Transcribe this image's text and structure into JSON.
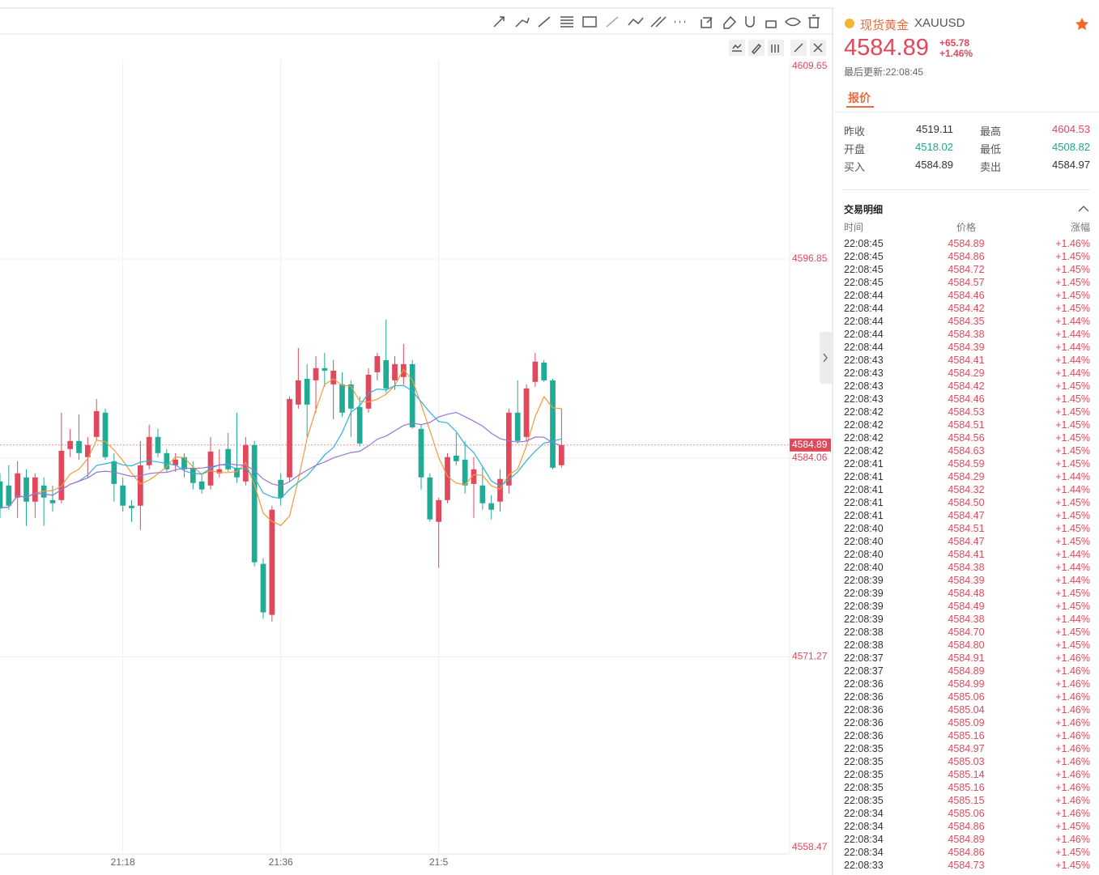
{
  "chart": {
    "type": "candlestick",
    "xlim": [
      0,
      90
    ],
    "xticks": [
      {
        "value": 14,
        "label": "21:18"
      },
      {
        "value": 32,
        "label": "21:36"
      },
      {
        "value": 50,
        "label": "21:5"
      }
    ],
    "ylim": [
      4558.6,
      4609.65
    ],
    "yticks": [
      4609.65,
      4596.85,
      4584.06,
      4571.27,
      4558.47
    ],
    "grid": true,
    "up_color": "#e0485c",
    "down_color": "#22ab94",
    "last_price": 4584.89,
    "open": [
      4582.55,
      4582.29,
      4581.51,
      4582.81,
      4581.25,
      4582.29,
      4581.35,
      4581.35,
      4584.63,
      4585.15,
      4584.11,
      4585.41,
      4586.97,
      4583.85,
      4582.29,
      4580.99,
      4580.99,
      4583.59,
      4585.41,
      4584.37,
      4583.59,
      4584.11,
      4583.43,
      4582.55,
      4582.29,
      4583.07,
      4584.63,
      4583.43,
      4582.55,
      4584.89,
      4577.25,
      4573.97,
      4582.65,
      4582.81,
      4587.49,
      4589.15,
      4589.05,
      4589.83,
      4588.79,
      4588.79,
      4588.79,
      4587.33,
      4587.23,
      4589.57,
      4590.35,
      4589.05,
      4589.26,
      4590.09,
      4585.93,
      4582.81,
      4579.95,
      4581.35,
      4584.21,
      4583.95,
      4582.39,
      4582.29,
      4581.15,
      4581.25,
      4582.29,
      4586.97,
      4585.41,
      4588.95,
      4590.19,
      4589.05,
      4583.59
    ],
    "high": [
      4583.07,
      4583.59,
      4583.85,
      4583.33,
      4583.07,
      4582.81,
      4582.29,
      4586.97,
      4585.93,
      4586.87,
      4585.41,
      4587.85,
      4587.23,
      4584.37,
      4582.81,
      4581.35,
      4585.15,
      4586.19,
      4585.93,
      4584.63,
      4584.37,
      4584.37,
      4583.85,
      4583.07,
      4585.41,
      4584.63,
      4585.67,
      4586.97,
      4585.41,
      4585.15,
      4577.61,
      4580.99,
      4583.07,
      4588.01,
      4591.13,
      4590.09,
      4590.61,
      4590.82,
      4590.35,
      4589.57,
      4589.05,
      4588.01,
      4589.83,
      4590.82,
      4592.95,
      4590.61,
      4591.39,
      4590.35,
      4586.19,
      4583.07,
      4581.51,
      4584.37,
      4585.67,
      4585.15,
      4584.11,
      4583.43,
      4581.67,
      4583.33,
      4587.23,
      4589.05,
      4588.79,
      4590.82,
      4590.35,
      4589.15,
      4587.23
    ],
    "low": [
      4580.21,
      4580.73,
      4580.21,
      4579.69,
      4580.21,
      4579.69,
      4580.61,
      4581.15,
      4584.11,
      4583.95,
      4582.81,
      4585.15,
      4583.95,
      4581.25,
      4580.61,
      4579.95,
      4579.43,
      4583.33,
      4584.11,
      4583.17,
      4583.17,
      4582.81,
      4582.03,
      4581.77,
      4582.03,
      4582.81,
      4583.17,
      4582.45,
      4582.29,
      4577.09,
      4573.71,
      4573.55,
      4580.99,
      4582.55,
      4587.23,
      4585.41,
      4586.97,
      4588.63,
      4586.55,
      4586.71,
      4585.41,
      4584.79,
      4586.97,
      4589.05,
      4588.27,
      4588.43,
      4588.79,
      4585.93,
      4582.03,
      4579.95,
      4576.99,
      4581.15,
      4583.59,
      4581.77,
      4580.21,
      4580.73,
      4580.11,
      4580.61,
      4581.77,
      4584.99,
      4585.15,
      4588.63,
      4588.95,
      4583.33,
      4583.43
    ],
    "close": [
      4580.83,
      4580.99,
      4583.07,
      4581.25,
      4582.81,
      4581.51,
      4581.15,
      4584.52,
      4585.15,
      4584.37,
      4584.89,
      4587.07,
      4584.11,
      4582.39,
      4580.99,
      4580.83,
      4583.59,
      4585.41,
      4584.37,
      4583.33,
      4583.95,
      4583.33,
      4582.45,
      4582.03,
      4584.47,
      4583.33,
      4583.33,
      4582.81,
      4584.89,
      4577.35,
      4574.13,
      4580.73,
      4581.51,
      4587.85,
      4589.05,
      4587.49,
      4589.83,
      4589.67,
      4589.67,
      4586.97,
      4587.23,
      4584.99,
      4589.41,
      4590.61,
      4588.53,
      4590.09,
      4590.09,
      4586.03,
      4582.81,
      4580.11,
      4581.35,
      4584.11,
      4583.85,
      4582.29,
      4583.33,
      4581.15,
      4580.73,
      4582.71,
      4586.97,
      4585.15,
      4588.53,
      4590.25,
      4589.05,
      4583.43,
      4584.89
    ],
    "indicators": [
      {
        "color": "#f39a3a"
      },
      {
        "color": "#2bb3d3"
      },
      {
        "color": "#9b74d8"
      }
    ]
  },
  "header": {
    "name": "现货黄金",
    "symbol": "XAUUSD",
    "price": "4584.89",
    "change": "+65.78",
    "change_pct": "+1.46%",
    "updated": "最后更新:22:08:45",
    "tab": "报价"
  },
  "quote": [
    {
      "label": "昨收",
      "value": "4519.11",
      "color": "#333333"
    },
    {
      "label": "最高",
      "value": "4604.53",
      "color": "#e0485c"
    },
    {
      "label": "开盘",
      "value": "4518.02",
      "color": "#1fa58e"
    },
    {
      "label": "最低",
      "value": "4508.82",
      "color": "#1fa58e"
    },
    {
      "label": "买入",
      "value": "4584.89",
      "color": "#333333"
    },
    {
      "label": "卖出",
      "value": "4584.97",
      "color": "#333333"
    }
  ],
  "trades": {
    "title": "交易明细",
    "columns": [
      "时间",
      "价格",
      "涨幅"
    ],
    "color": "#e0485c",
    "rows": [
      [
        "22:08:45",
        "4584.89",
        "+1.46%"
      ],
      [
        "22:08:45",
        "4584.86",
        "+1.45%"
      ],
      [
        "22:08:45",
        "4584.72",
        "+1.45%"
      ],
      [
        "22:08:45",
        "4584.57",
        "+1.45%"
      ],
      [
        "22:08:44",
        "4584.46",
        "+1.45%"
      ],
      [
        "22:08:44",
        "4584.42",
        "+1.45%"
      ],
      [
        "22:08:44",
        "4584.35",
        "+1.44%"
      ],
      [
        "22:08:44",
        "4584.38",
        "+1.44%"
      ],
      [
        "22:08:44",
        "4584.39",
        "+1.44%"
      ],
      [
        "22:08:43",
        "4584.41",
        "+1.44%"
      ],
      [
        "22:08:43",
        "4584.29",
        "+1.44%"
      ],
      [
        "22:08:43",
        "4584.42",
        "+1.45%"
      ],
      [
        "22:08:43",
        "4584.46",
        "+1.45%"
      ],
      [
        "22:08:42",
        "4584.53",
        "+1.45%"
      ],
      [
        "22:08:42",
        "4584.51",
        "+1.45%"
      ],
      [
        "22:08:42",
        "4584.56",
        "+1.45%"
      ],
      [
        "22:08:42",
        "4584.63",
        "+1.45%"
      ],
      [
        "22:08:41",
        "4584.59",
        "+1.45%"
      ],
      [
        "22:08:41",
        "4584.29",
        "+1.44%"
      ],
      [
        "22:08:41",
        "4584.32",
        "+1.44%"
      ],
      [
        "22:08:41",
        "4584.50",
        "+1.45%"
      ],
      [
        "22:08:41",
        "4584.47",
        "+1.45%"
      ],
      [
        "22:08:40",
        "4584.51",
        "+1.45%"
      ],
      [
        "22:08:40",
        "4584.47",
        "+1.45%"
      ],
      [
        "22:08:40",
        "4584.41",
        "+1.44%"
      ],
      [
        "22:08:40",
        "4584.38",
        "+1.44%"
      ],
      [
        "22:08:39",
        "4584.39",
        "+1.44%"
      ],
      [
        "22:08:39",
        "4584.48",
        "+1.45%"
      ],
      [
        "22:08:39",
        "4584.49",
        "+1.45%"
      ],
      [
        "22:08:39",
        "4584.38",
        "+1.44%"
      ],
      [
        "22:08:38",
        "4584.70",
        "+1.45%"
      ],
      [
        "22:08:38",
        "4584.80",
        "+1.45%"
      ],
      [
        "22:08:37",
        "4584.91",
        "+1.46%"
      ],
      [
        "22:08:37",
        "4584.89",
        "+1.46%"
      ],
      [
        "22:08:36",
        "4584.99",
        "+1.46%"
      ],
      [
        "22:08:36",
        "4585.06",
        "+1.46%"
      ],
      [
        "22:08:36",
        "4585.04",
        "+1.46%"
      ],
      [
        "22:08:36",
        "4585.09",
        "+1.46%"
      ],
      [
        "22:08:36",
        "4585.16",
        "+1.46%"
      ],
      [
        "22:08:35",
        "4584.97",
        "+1.46%"
      ],
      [
        "22:08:35",
        "4585.03",
        "+1.46%"
      ],
      [
        "22:08:35",
        "4585.14",
        "+1.46%"
      ],
      [
        "22:08:35",
        "4585.16",
        "+1.46%"
      ],
      [
        "22:08:35",
        "4585.15",
        "+1.46%"
      ],
      [
        "22:08:34",
        "4585.06",
        "+1.46%"
      ],
      [
        "22:08:34",
        "4584.86",
        "+1.45%"
      ],
      [
        "22:08:34",
        "4584.89",
        "+1.46%"
      ],
      [
        "22:08:34",
        "4584.86",
        "+1.45%"
      ],
      [
        "22:08:33",
        "4584.73",
        "+1.45%"
      ]
    ]
  }
}
